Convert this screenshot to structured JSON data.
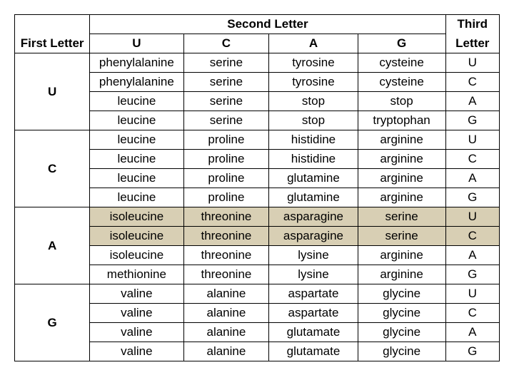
{
  "headers": {
    "first": "First Letter",
    "second": "Second Letter",
    "third": "Third",
    "letter": "Letter",
    "cols": [
      "U",
      "C",
      "A",
      "G"
    ]
  },
  "firstLetters": [
    "U",
    "C",
    "A",
    "G"
  ],
  "thirdLetters": [
    "U",
    "C",
    "A",
    "G"
  ],
  "codon": {
    "U": {
      "U": [
        "phenylalanine",
        "phenylalanine",
        "leucine",
        "leucine"
      ],
      "C": [
        "serine",
        "serine",
        "serine",
        "serine"
      ],
      "A": [
        "tyrosine",
        "tyrosine",
        "stop",
        "stop"
      ],
      "G": [
        "cysteine",
        "cysteine",
        "stop",
        "tryptophan"
      ]
    },
    "C": {
      "U": [
        "leucine",
        "leucine",
        "leucine",
        "leucine"
      ],
      "C": [
        "proline",
        "proline",
        "proline",
        "proline"
      ],
      "A": [
        "histidine",
        "histidine",
        "glutamine",
        "glutamine"
      ],
      "G": [
        "arginine",
        "arginine",
        "arginine",
        "arginine"
      ]
    },
    "A": {
      "U": [
        "isoleucine",
        "isoleucine",
        "isoleucine",
        "methionine"
      ],
      "C": [
        "threonine",
        "threonine",
        "threonine",
        "threonine"
      ],
      "A": [
        "asparagine",
        "asparagine",
        "lysine",
        "lysine"
      ],
      "G": [
        "serine",
        "serine",
        "arginine",
        "arginine"
      ]
    },
    "G": {
      "U": [
        "valine",
        "valine",
        "valine",
        "valine"
      ],
      "C": [
        "alanine",
        "alanine",
        "alanine",
        "alanine"
      ],
      "A": [
        "aspartate",
        "aspartate",
        "glutamate",
        "glutamate"
      ],
      "G": [
        "glycine",
        "glycine",
        "glycine",
        "glycine"
      ]
    }
  },
  "highlight": {
    "first": "A",
    "thirdIdx": [
      0,
      1
    ]
  },
  "style": {
    "border_color": "#000000",
    "highlight_color": "#d8cfb4",
    "background": "#ffffff",
    "font_size": 17
  }
}
